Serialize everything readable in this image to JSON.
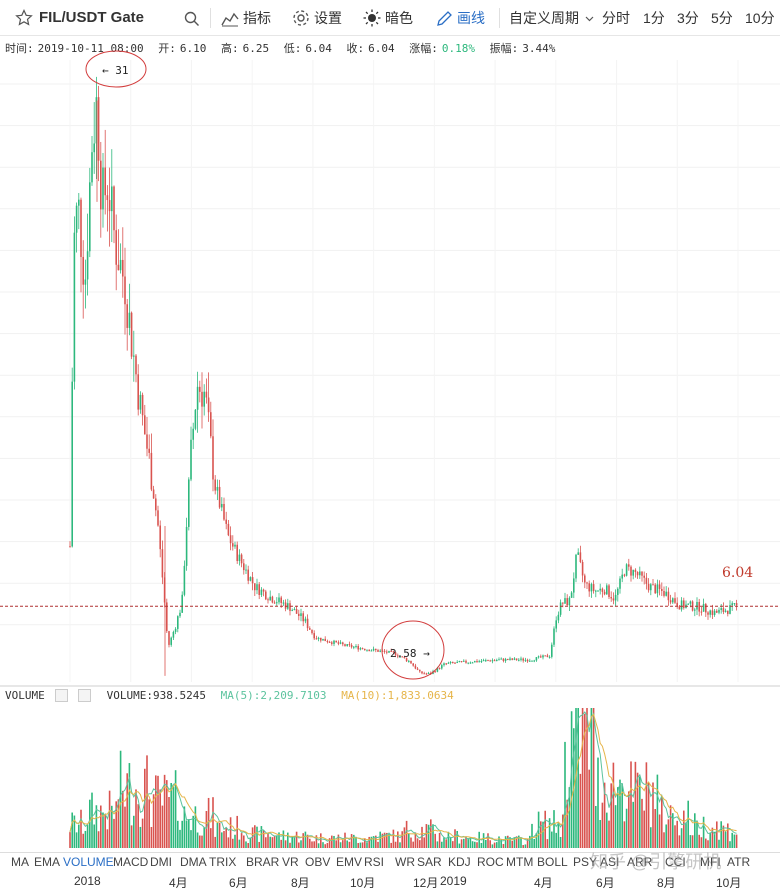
{
  "toolbar": {
    "symbol": "FIL/USDT Gate",
    "indicators_label": "指标",
    "settings_label": "设置",
    "theme_label": "暗色",
    "draw_label": "画线",
    "custom_period_label": "自定义周期",
    "periods": [
      "分时",
      "1分",
      "3分",
      "5分",
      "10分"
    ]
  },
  "info": {
    "time_label": "时间:",
    "time": "2019-10-11 08:00",
    "open_label": "开:",
    "open": "6.10",
    "high_label": "高:",
    "high": "6.25",
    "low_label": "低:",
    "low": "6.04",
    "close_label": "收:",
    "close": "6.04",
    "change_label": "涨幅:",
    "change": "0.18%",
    "amplitude_label": "振幅:",
    "amplitude": "3.44%"
  },
  "annotations": {
    "high_marker": "← 31",
    "low_marker": "2.58 →",
    "last_price": "6.04"
  },
  "volume": {
    "title": "VOLUME",
    "value_label": "VOLUME:938.5245",
    "ma5_label": "MA(5):2,209.7103",
    "ma10_label": "MA(10):1,833.0634"
  },
  "indicators": [
    "MA",
    "EMA",
    "VOLUME",
    "MACD",
    "DMI",
    "DMA",
    "TRIX",
    "BRAR",
    "VR",
    "OBV",
    "EMV",
    "RSI",
    "WR",
    "SAR",
    "KDJ",
    "ROC",
    "MTM",
    "BOLL",
    "PSY",
    "ASI",
    "ARR",
    "CCI",
    "MFI",
    "ATR"
  ],
  "active_indicator": "VOLUME",
  "watermark": "知乎 @引擎研机",
  "colors": {
    "up": "#2db87d",
    "down": "#d9534f",
    "ma5": "#5cc39e",
    "ma10": "#e6b54a",
    "accent": "#2a6ec5",
    "last_price_line": "#b03030"
  },
  "chart_data": {
    "type": "candlestick",
    "price_range": [
      2.3,
      33
    ],
    "dates": [
      "2018-01",
      "2018-02",
      "2018-03",
      "2018-04",
      "2018-05",
      "2018-06",
      "2018-07",
      "2018-08",
      "2018-09",
      "2018-10",
      "2018-11",
      "2018-12",
      "2019-01",
      "2019-02",
      "2019-03",
      "2019-04",
      "2019-05",
      "2019-06",
      "2019-07",
      "2019-08",
      "2019-09",
      "2019-10"
    ],
    "close": [
      22,
      26,
      12,
      20,
      14,
      10,
      7.5,
      5.6,
      4.7,
      4.6,
      4.2,
      3.1,
      3.4,
      3.5,
      3.5,
      4.2,
      8.0,
      7.5,
      8.5,
      7.2,
      6.5,
      6.04
    ],
    "high_marker_value": 31,
    "low_marker_value": 2.58,
    "last_price": 6.04,
    "x_tick_labels": [
      "2018",
      "4月",
      "6月",
      "8月",
      "10月",
      "12月",
      "2019",
      "4月",
      "6月",
      "8月",
      "10月"
    ],
    "volume": [
      1.2,
      1.8,
      3.0,
      2.4,
      1.6,
      1.0,
      0.7,
      0.6,
      0.5,
      0.5,
      0.6,
      0.9,
      0.6,
      0.5,
      0.4,
      1.2,
      5.6,
      3.2,
      2.8,
      1.6,
      1.1,
      0.9
    ]
  },
  "x_axis": [
    "2018",
    "4月",
    "6月",
    "8月",
    "10月",
    "12月",
    "2019",
    "4月",
    "6月",
    "8月",
    "10月"
  ]
}
